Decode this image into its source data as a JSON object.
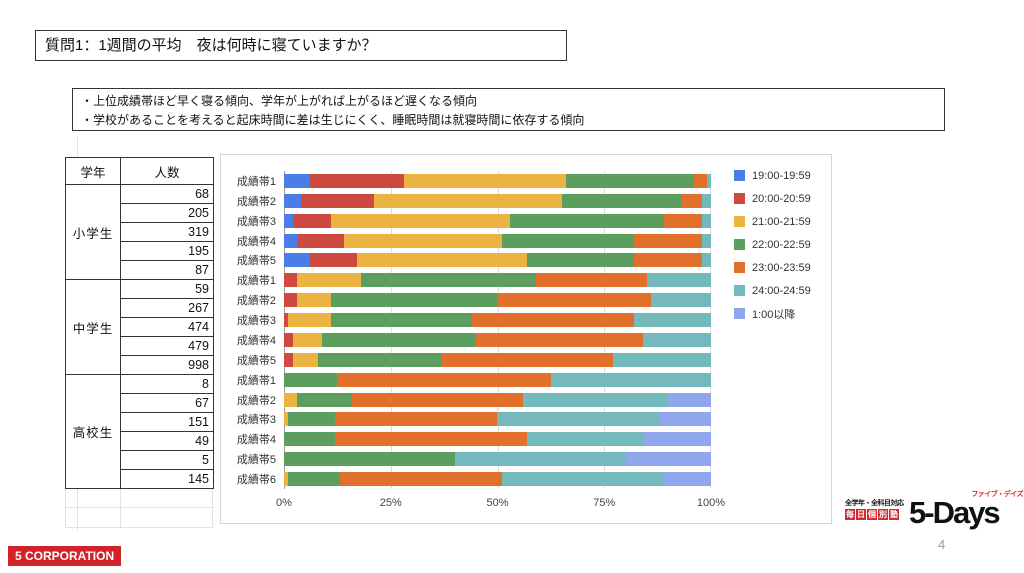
{
  "slide": {
    "title": "質問1：1週間の平均　夜は何時に寝ていますか？",
    "summary_lines": [
      "・上位成績帯ほど早く寝る傾向、学年が上がれば上がるほど遅くなる傾向",
      "・学校があることを考えると起床時間に差は生じにくく、睡眠時間は就寝時間に依存する傾向"
    ],
    "page_number": "4"
  },
  "table": {
    "headers": {
      "grade": "学年",
      "count": "人数"
    },
    "groups": [
      {
        "grade": "小学生",
        "counts": [
          68,
          205,
          319,
          195,
          87
        ]
      },
      {
        "grade": "中学生",
        "counts": [
          59,
          267,
          474,
          479,
          998
        ]
      },
      {
        "grade": "高校生",
        "counts": [
          8,
          67,
          151,
          49,
          5,
          145
        ]
      }
    ]
  },
  "chart_data": {
    "type": "bar",
    "orientation": "horizontal",
    "stacked": true,
    "unit": "percent",
    "xlim": [
      0,
      100
    ],
    "x_ticks": [
      "0%",
      "25%",
      "50%",
      "75%",
      "100%"
    ],
    "grid": true,
    "legend_position": "right",
    "categories": [
      "成績帯1",
      "成績帯2",
      "成績帯3",
      "成績帯4",
      "成績帯5",
      "成績帯1",
      "成績帯2",
      "成績帯3",
      "成績帯4",
      "成績帯5",
      "成績帯1",
      "成績帯2",
      "成績帯3",
      "成績帯4",
      "成績帯5",
      "成績帯6"
    ],
    "category_groups": [
      "小学生",
      "小学生",
      "小学生",
      "小学生",
      "小学生",
      "中学生",
      "中学生",
      "中学生",
      "中学生",
      "中学生",
      "高校生",
      "高校生",
      "高校生",
      "高校生",
      "高校生",
      "高校生"
    ],
    "series": [
      {
        "name": "19:00-19:59",
        "color": "#4a7de8",
        "values": [
          6,
          4,
          2,
          3,
          6,
          0,
          0,
          0,
          0,
          0,
          0,
          0,
          0,
          0,
          0,
          0
        ]
      },
      {
        "name": "20:00-20:59",
        "color": "#ce4a41",
        "values": [
          22,
          17,
          9,
          11,
          11,
          3,
          3,
          1,
          2,
          2,
          0,
          0,
          0,
          0,
          0,
          0
        ]
      },
      {
        "name": "21:00-21:59",
        "color": "#ebb342",
        "values": [
          38,
          44,
          42,
          37,
          40,
          15,
          8,
          10,
          7,
          6,
          0,
          3,
          1,
          0,
          0,
          1
        ]
      },
      {
        "name": "22:00-22:59",
        "color": "#5b9e5e",
        "values": [
          30,
          28,
          36,
          31,
          25,
          41,
          39,
          33,
          36,
          29,
          12.5,
          13,
          11,
          12,
          40,
          12
        ]
      },
      {
        "name": "23:00-23:59",
        "color": "#e2702d",
        "values": [
          3,
          5,
          9,
          16,
          16,
          26,
          36,
          38,
          39,
          40,
          50,
          40,
          38,
          45,
          0,
          38
        ]
      },
      {
        "name": "24:00-24:59",
        "color": "#74b9bc",
        "values": [
          1,
          2,
          2,
          2,
          2,
          15,
          14,
          18,
          16,
          23,
          37.5,
          34,
          38,
          27,
          40,
          38
        ]
      },
      {
        "name": "1:00以降",
        "color": "#90a7ee",
        "values": [
          0,
          0,
          0,
          0,
          0,
          0,
          0,
          0,
          0,
          0,
          0,
          10,
          12,
          16,
          20,
          11
        ]
      }
    ]
  },
  "logos": {
    "five_days": {
      "top_label": "全学年・全科目対応",
      "boxed_label_chars": [
        "毎",
        "日",
        "個",
        "別",
        "塾"
      ],
      "katakana": "ファイブ・デイズ",
      "wordmark": "5-Days",
      "red": "#d7282f"
    },
    "corporation": {
      "text": "5 CORPORATION",
      "bg": "#d2232a"
    }
  }
}
